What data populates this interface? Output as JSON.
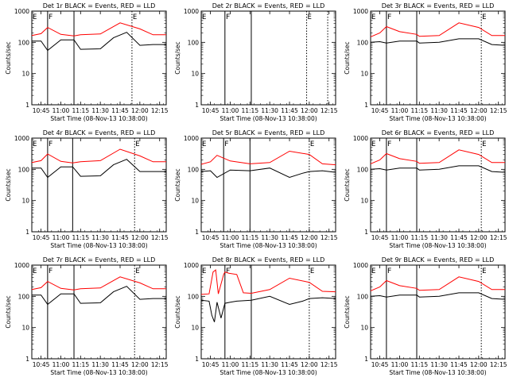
{
  "chart_data": {
    "type": "line",
    "layout": "3x3 grid",
    "y_scale": "log",
    "ylim": [
      1,
      1000
    ],
    "yticks": [
      "1",
      "10",
      "100",
      "1000"
    ],
    "ylabel": "Counts/sec",
    "xlabel": "Start Time (08-Nov-13 10:38:00)",
    "xlim": [
      "10:38",
      "12:20"
    ],
    "xticks": [
      "10:45",
      "11:00",
      "11:15",
      "11:30",
      "11:45",
      "12:00",
      "12:15"
    ],
    "colors": {
      "events": "#000000",
      "lld": "#ff0000"
    },
    "panels": [
      {
        "title": "Det 1r BLACK = Events, RED = LLD",
        "markers": [
          {
            "label": "E",
            "time": "10:38",
            "style": "dotted"
          },
          {
            "label": "F",
            "time": "10:50",
            "style": "solid"
          },
          {
            "label": "",
            "time": "11:10",
            "style": "solid"
          },
          {
            "label": "E",
            "time": "11:54",
            "style": "dotted"
          }
        ],
        "series": [
          {
            "name": "Events",
            "times": [
              "10:38",
              "10:45",
              "10:50",
              "11:00",
              "11:10",
              "11:15",
              "11:30",
              "11:40",
              "11:50",
              "12:00",
              "12:10",
              "12:20"
            ],
            "values": [
              110,
              110,
              55,
              120,
              120,
              60,
              62,
              140,
              210,
              80,
              85,
              85
            ]
          },
          {
            "name": "LLD",
            "times": [
              "10:38",
              "10:45",
              "10:50",
              "11:00",
              "11:10",
              "11:15",
              "11:30",
              "11:45",
              "12:00",
              "12:10",
              "12:20"
            ],
            "values": [
              165,
              190,
              300,
              180,
              160,
              175,
              185,
              420,
              270,
              175,
              175
            ]
          }
        ]
      },
      {
        "title": "Det 2r BLACK = Events, RED = LLD",
        "markers": [
          {
            "label": "E",
            "time": "10:38",
            "style": "dotted"
          },
          {
            "label": "F",
            "time": "10:56",
            "style": "solid"
          },
          {
            "label": "",
            "time": "11:16",
            "style": "solid"
          },
          {
            "label": "E",
            "time": "11:58",
            "style": "dotted"
          },
          {
            "label": "",
            "time": "12:14",
            "style": "dotted"
          }
        ],
        "series": []
      },
      {
        "title": "Det 3r BLACK = Events, RED = LLD",
        "markers": [
          {
            "label": "E",
            "time": "10:38",
            "style": "dotted"
          },
          {
            "label": "F",
            "time": "10:50",
            "style": "solid"
          },
          {
            "label": "",
            "time": "11:13",
            "style": "solid"
          },
          {
            "label": "E",
            "time": "12:02",
            "style": "dotted"
          }
        ],
        "series": [
          {
            "name": "Events",
            "times": [
              "10:38",
              "10:45",
              "10:50",
              "11:00",
              "11:13",
              "11:15",
              "11:30",
              "11:45",
              "12:00",
              "12:10",
              "12:20"
            ],
            "values": [
              100,
              105,
              95,
              110,
              110,
              95,
              100,
              130,
              130,
              85,
              80
            ]
          },
          {
            "name": "LLD",
            "times": [
              "10:38",
              "10:45",
              "10:50",
              "11:00",
              "11:13",
              "11:15",
              "11:30",
              "11:45",
              "12:00",
              "12:10",
              "12:20"
            ],
            "values": [
              150,
              200,
              320,
              220,
              180,
              155,
              165,
              420,
              300,
              165,
              165
            ]
          }
        ]
      },
      {
        "title": "Det 4r BLACK = Events, RED = LLD",
        "markers": [
          {
            "label": "E",
            "time": "10:38",
            "style": "dotted"
          },
          {
            "label": "F",
            "time": "10:50",
            "style": "solid"
          },
          {
            "label": "",
            "time": "11:09",
            "style": "solid"
          },
          {
            "label": "E",
            "time": "11:56",
            "style": "dotted"
          }
        ],
        "series": [
          {
            "name": "Events",
            "times": [
              "10:38",
              "10:45",
              "10:50",
              "11:00",
              "11:09",
              "11:15",
              "11:30",
              "11:40",
              "11:50",
              "12:00",
              "12:10",
              "12:20"
            ],
            "values": [
              110,
              110,
              55,
              120,
              120,
              60,
              62,
              140,
              210,
              85,
              85,
              85
            ]
          },
          {
            "name": "LLD",
            "times": [
              "10:38",
              "10:45",
              "10:50",
              "11:00",
              "11:09",
              "11:15",
              "11:30",
              "11:45",
              "12:00",
              "12:10",
              "12:20"
            ],
            "values": [
              165,
              190,
              310,
              180,
              160,
              175,
              190,
              440,
              270,
              175,
              175
            ]
          }
        ]
      },
      {
        "title": "Det 5r BLACK = Events, RED = LLD",
        "markers": [
          {
            "label": "E",
            "time": "10:38",
            "style": "dotted"
          },
          {
            "label": "F",
            "time": "10:55",
            "style": "solid"
          },
          {
            "label": "",
            "time": "11:15",
            "style": "solid"
          },
          {
            "label": "E",
            "time": "12:00",
            "style": "dotted"
          }
        ],
        "series": [
          {
            "name": "Events",
            "times": [
              "10:38",
              "10:45",
              "10:50",
              "11:00",
              "11:15",
              "11:30",
              "11:45",
              "11:55",
              "12:00",
              "12:10",
              "12:20"
            ],
            "values": [
              85,
              90,
              55,
              95,
              90,
              110,
              55,
              75,
              85,
              90,
              80
            ]
          },
          {
            "name": "LLD",
            "times": [
              "10:38",
              "10:45",
              "10:50",
              "11:00",
              "11:15",
              "11:30",
              "11:45",
              "12:00",
              "12:10",
              "12:20"
            ],
            "values": [
              145,
              175,
              280,
              185,
              150,
              165,
              380,
              300,
              150,
              140
            ]
          }
        ]
      },
      {
        "title": "Det 6r BLACK = Events, RED = LLD",
        "markers": [
          {
            "label": "E",
            "time": "10:38",
            "style": "dotted"
          },
          {
            "label": "F",
            "time": "10:50",
            "style": "solid"
          },
          {
            "label": "",
            "time": "11:13",
            "style": "solid"
          },
          {
            "label": "E",
            "time": "12:02",
            "style": "dotted"
          }
        ],
        "series": [
          {
            "name": "Events",
            "times": [
              "10:38",
              "10:45",
              "10:50",
              "11:00",
              "11:13",
              "11:15",
              "11:30",
              "11:45",
              "12:00",
              "12:10",
              "12:20"
            ],
            "values": [
              100,
              105,
              95,
              110,
              110,
              95,
              100,
              130,
              130,
              85,
              80
            ]
          },
          {
            "name": "LLD",
            "times": [
              "10:38",
              "10:45",
              "10:50",
              "11:00",
              "11:13",
              "11:15",
              "11:30",
              "11:45",
              "12:00",
              "12:10",
              "12:20"
            ],
            "values": [
              150,
              200,
              320,
              220,
              180,
              155,
              165,
              420,
              300,
              165,
              165
            ]
          }
        ]
      },
      {
        "title": "Det 7r BLACK = Events, RED = LLD",
        "markers": [
          {
            "label": "E",
            "time": "10:38",
            "style": "dotted"
          },
          {
            "label": "F",
            "time": "10:50",
            "style": "solid"
          },
          {
            "label": "",
            "time": "11:10",
            "style": "solid"
          },
          {
            "label": "E",
            "time": "11:56",
            "style": "dotted"
          }
        ],
        "series": [
          {
            "name": "Events",
            "times": [
              "10:38",
              "10:45",
              "10:50",
              "11:00",
              "11:10",
              "11:15",
              "11:30",
              "11:40",
              "11:50",
              "12:00",
              "12:10",
              "12:20"
            ],
            "values": [
              110,
              110,
              55,
              120,
              120,
              60,
              62,
              140,
              210,
              80,
              85,
              85
            ]
          },
          {
            "name": "LLD",
            "times": [
              "10:38",
              "10:45",
              "10:50",
              "11:00",
              "11:10",
              "11:15",
              "11:30",
              "11:45",
              "12:00",
              "12:10",
              "12:20"
            ],
            "values": [
              165,
              190,
              300,
              180,
              160,
              175,
              185,
              420,
              270,
              175,
              175
            ]
          }
        ]
      },
      {
        "title": "Det 8r BLACK = Events, RED = LLD",
        "markers": [
          {
            "label": "E",
            "time": "10:38",
            "style": "dotted"
          },
          {
            "label": "F",
            "time": "10:56",
            "style": "solid"
          },
          {
            "label": "",
            "time": "11:16",
            "style": "solid"
          },
          {
            "label": "E",
            "time": "12:00",
            "style": "dotted"
          }
        ],
        "series": [
          {
            "name": "Events",
            "times": [
              "10:38",
              "10:44",
              "10:46",
              "10:48",
              "10:50",
              "10:53",
              "10:56",
              "11:00",
              "11:05",
              "11:16",
              "11:30",
              "11:45",
              "11:55",
              "12:00",
              "12:10",
              "12:20"
            ],
            "values": [
              75,
              70,
              25,
              15,
              65,
              20,
              60,
              65,
              70,
              75,
              100,
              55,
              70,
              85,
              90,
              85
            ]
          },
          {
            "name": "LLD",
            "times": [
              "10:38",
              "10:44",
              "10:47",
              "10:49",
              "10:51",
              "10:55",
              "10:56",
              "10:59",
              "11:05",
              "11:10",
              "11:16",
              "11:30",
              "11:45",
              "12:00",
              "12:10",
              "12:20"
            ],
            "values": [
              115,
              120,
              600,
              700,
              120,
              500,
              600,
              550,
              500,
              130,
              125,
              165,
              380,
              280,
              145,
              140
            ]
          }
        ]
      },
      {
        "title": "Det 9r BLACK = Events, RED = LLD",
        "markers": [
          {
            "label": "E",
            "time": "10:38",
            "style": "dotted"
          },
          {
            "label": "F",
            "time": "10:50",
            "style": "solid"
          },
          {
            "label": "",
            "time": "11:13",
            "style": "solid"
          },
          {
            "label": "E",
            "time": "12:02",
            "style": "dotted"
          }
        ],
        "series": [
          {
            "name": "Events",
            "times": [
              "10:38",
              "10:45",
              "10:50",
              "11:00",
              "11:13",
              "11:15",
              "11:30",
              "11:45",
              "12:00",
              "12:10",
              "12:20"
            ],
            "values": [
              100,
              105,
              95,
              110,
              110,
              95,
              100,
              130,
              130,
              85,
              80
            ]
          },
          {
            "name": "LLD",
            "times": [
              "10:38",
              "10:45",
              "10:50",
              "11:00",
              "11:13",
              "11:15",
              "11:30",
              "11:45",
              "12:00",
              "12:10",
              "12:20"
            ],
            "values": [
              150,
              200,
              320,
              220,
              180,
              155,
              165,
              420,
              300,
              165,
              165
            ]
          }
        ]
      }
    ]
  }
}
